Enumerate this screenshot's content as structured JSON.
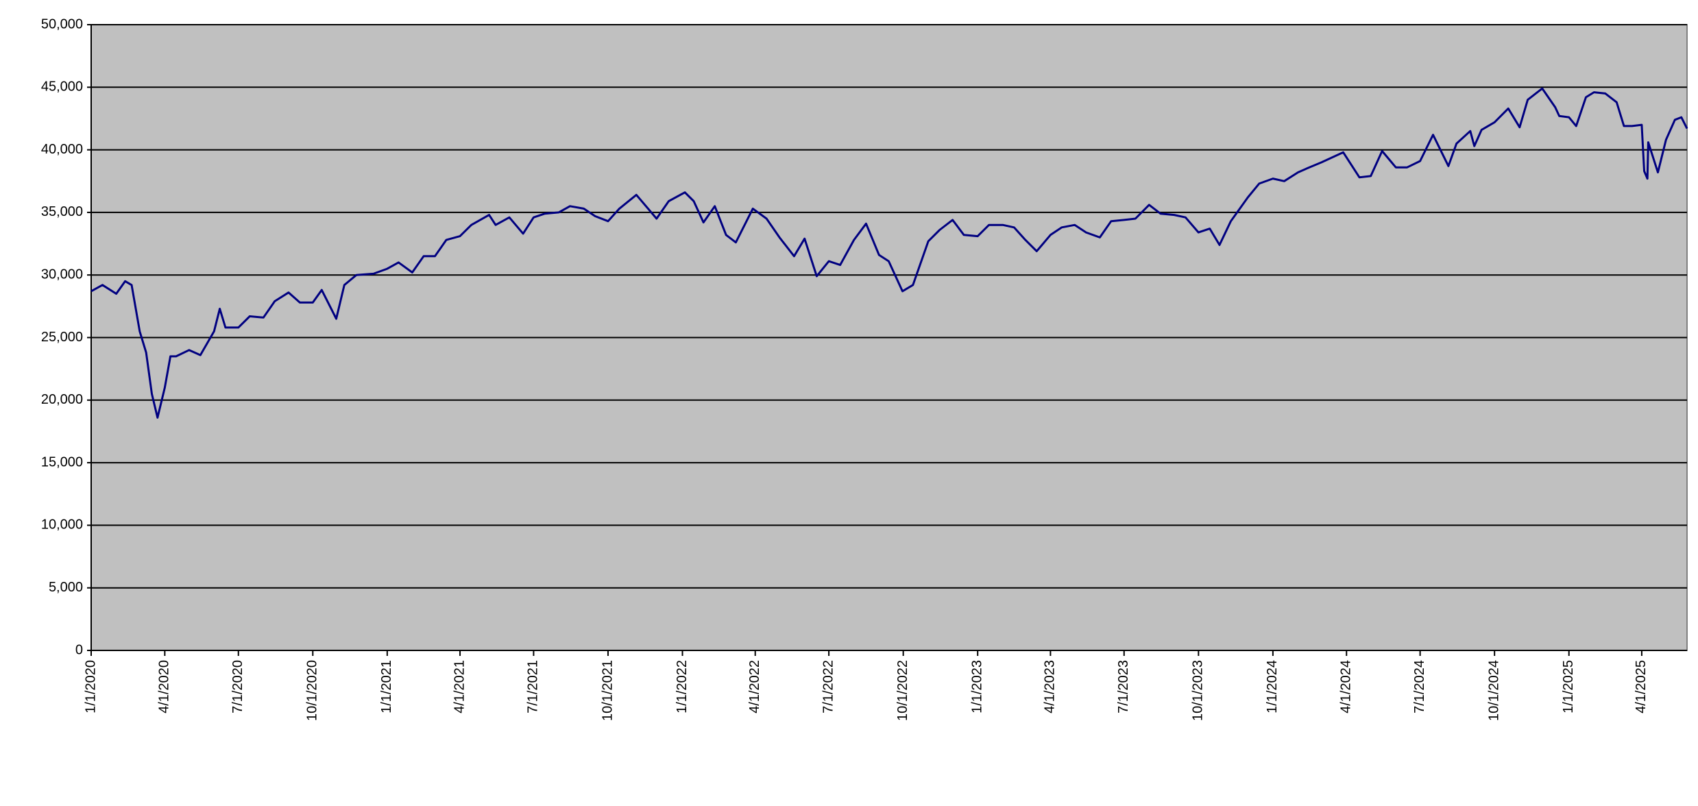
{
  "chart_data": {
    "type": "line",
    "color": "#000080",
    "background": "#c0c0c0",
    "grid": true,
    "xlim": [
      "1/1/2020",
      "5/27/2025"
    ],
    "xticks": [
      "1/1/2020",
      "4/1/2020",
      "7/1/2020",
      "10/1/2020",
      "1/1/2021",
      "4/1/2021",
      "7/1/2021",
      "10/1/2021",
      "1/1/2022",
      "4/1/2022",
      "7/1/2022",
      "10/1/2022",
      "1/1/2023",
      "4/1/2023",
      "7/1/2023",
      "10/1/2023",
      "1/1/2024",
      "4/1/2024",
      "7/1/2024",
      "10/1/2024",
      "1/1/2025",
      "4/1/2025"
    ],
    "ylim": [
      0,
      50000
    ],
    "yticks": [
      0,
      {
        "value": 5000,
        "label": "5,000"
      },
      {
        "value": 10000,
        "label": "10,000"
      },
      {
        "value": 15000,
        "label": "15,000"
      },
      {
        "value": 20000,
        "label": "20,000"
      },
      {
        "value": 25000,
        "label": "25,000"
      },
      {
        "value": 30000,
        "label": "30,000"
      },
      {
        "value": 35000,
        "label": "35,000"
      },
      {
        "value": 40000,
        "label": "40,000"
      },
      {
        "value": 45000,
        "label": "45,000"
      },
      {
        "value": 50000,
        "label": "50,000"
      }
    ],
    "x": [
      "1/1/2020",
      "1/15/2020",
      "2/1/2020",
      "2/12/2020",
      "2/20/2020",
      "3/1/2020",
      "3/9/2020",
      "3/16/2020",
      "3/23/2020",
      "4/1/2020",
      "4/8/2020",
      "4/15/2020",
      "5/1/2020",
      "5/15/2020",
      "6/1/2020",
      "6/8/2020",
      "6/15/2020",
      "7/1/2020",
      "7/15/2020",
      "8/1/2020",
      "8/15/2020",
      "9/1/2020",
      "9/15/2020",
      "10/1/2020",
      "10/12/2020",
      "10/30/2020",
      "11/9/2020",
      "11/24/2020",
      "12/15/2020",
      "1/1/2021",
      "1/15/2021",
      "2/1/2021",
      "2/15/2021",
      "3/1/2021",
      "3/15/2021",
      "4/1/2021",
      "4/15/2021",
      "5/7/2021",
      "5/15/2021",
      "6/1/2021",
      "6/18/2021",
      "7/1/2021",
      "7/15/2021",
      "8/1/2021",
      "8/15/2021",
      "9/1/2021",
      "9/15/2021",
      "10/1/2021",
      "10/15/2021",
      "11/5/2021",
      "11/30/2021",
      "12/15/2021",
      "1/4/2022",
      "1/15/2022",
      "1/27/2022",
      "2/10/2022",
      "2/24/2022",
      "3/8/2022",
      "3/29/2022",
      "4/15/2022",
      "5/1/2022",
      "5/19/2022",
      "6/1/2022",
      "6/16/2022",
      "7/1/2022",
      "7/15/2022",
      "8/1/2022",
      "8/16/2022",
      "9/1/2022",
      "9/13/2022",
      "9/30/2022",
      "10/13/2022",
      "11/1/2022",
      "11/15/2022",
      "12/1/2022",
      "12/15/2022",
      "1/1/2023",
      "1/15/2023",
      "2/1/2023",
      "2/15/2023",
      "3/1/2023",
      "3/15/2023",
      "4/1/2023",
      "4/15/2023",
      "5/1/2023",
      "5/15/2023",
      "6/1/2023",
      "6/15/2023",
      "7/1/2023",
      "7/15/2023",
      "8/1/2023",
      "8/15/2023",
      "9/1/2023",
      "9/15/2023",
      "10/1/2023",
      "10/15/2023",
      "10/27/2023",
      "11/10/2023",
      "12/1/2023",
      "12/15/2023",
      "1/1/2024",
      "1/15/2024",
      "2/1/2024",
      "2/15/2024",
      "3/1/2024",
      "3/28/2024",
      "4/17/2024",
      "5/1/2024",
      "5/15/2024",
      "6/1/2024",
      "6/15/2024",
      "7/1/2024",
      "7/17/2024",
      "8/5/2024",
      "8/15/2024",
      "9/1/2024",
      "9/6/2024",
      "9/15/2024",
      "10/1/2024",
      "10/18/2024",
      "11/1/2024",
      "11/11/2024",
      "11/29/2024",
      "12/15/2024",
      "12/20/2024",
      "1/1/2025",
      "1/10/2025",
      "1/22/2025",
      "2/1/2025",
      "2/15/2025",
      "3/1/2025",
      "3/10/2025",
      "3/20/2025",
      "4/1/2025",
      "4/4/2025",
      "4/8/2025",
      "4/9/2025",
      "4/21/2025",
      "5/1/2025",
      "5/12/2025",
      "5/20/2025",
      "5/27/2025"
    ],
    "values": [
      28700,
      29200,
      28500,
      29500,
      29200,
      25500,
      23800,
      20500,
      18600,
      21000,
      23500,
      23500,
      24000,
      23600,
      25500,
      27300,
      25800,
      25800,
      26700,
      26600,
      27900,
      28600,
      27800,
      27800,
      28800,
      26500,
      29200,
      30000,
      30100,
      30500,
      31000,
      30200,
      31500,
      31500,
      32800,
      33100,
      34000,
      34800,
      34000,
      34600,
      33300,
      34600,
      34900,
      35000,
      35500,
      35300,
      34700,
      34300,
      35300,
      36400,
      34500,
      35900,
      36600,
      35900,
      34200,
      35500,
      33200,
      32600,
      35300,
      34500,
      33000,
      31500,
      32900,
      29900,
      31100,
      30800,
      32800,
      34100,
      31600,
      31100,
      28700,
      29200,
      32700,
      33600,
      34400,
      33200,
      33100,
      34000,
      34000,
      33800,
      32800,
      31900,
      33200,
      33800,
      34000,
      33400,
      33000,
      34300,
      34400,
      34500,
      35600,
      34900,
      34800,
      34600,
      33400,
      33700,
      32400,
      34300,
      36200,
      37300,
      37700,
      37500,
      38200,
      38600,
      39000,
      39800,
      37800,
      37900,
      39900,
      38600,
      38600,
      39100,
      41200,
      38700,
      40500,
      41500,
      40300,
      41600,
      42200,
      43300,
      41800,
      44000,
      44900,
      43400,
      42700,
      42600,
      41900,
      44200,
      44600,
      44500,
      43800,
      41900,
      41900,
      42000,
      38300,
      37700,
      40600,
      38200,
      40800,
      42400,
      42600,
      41700
    ]
  }
}
